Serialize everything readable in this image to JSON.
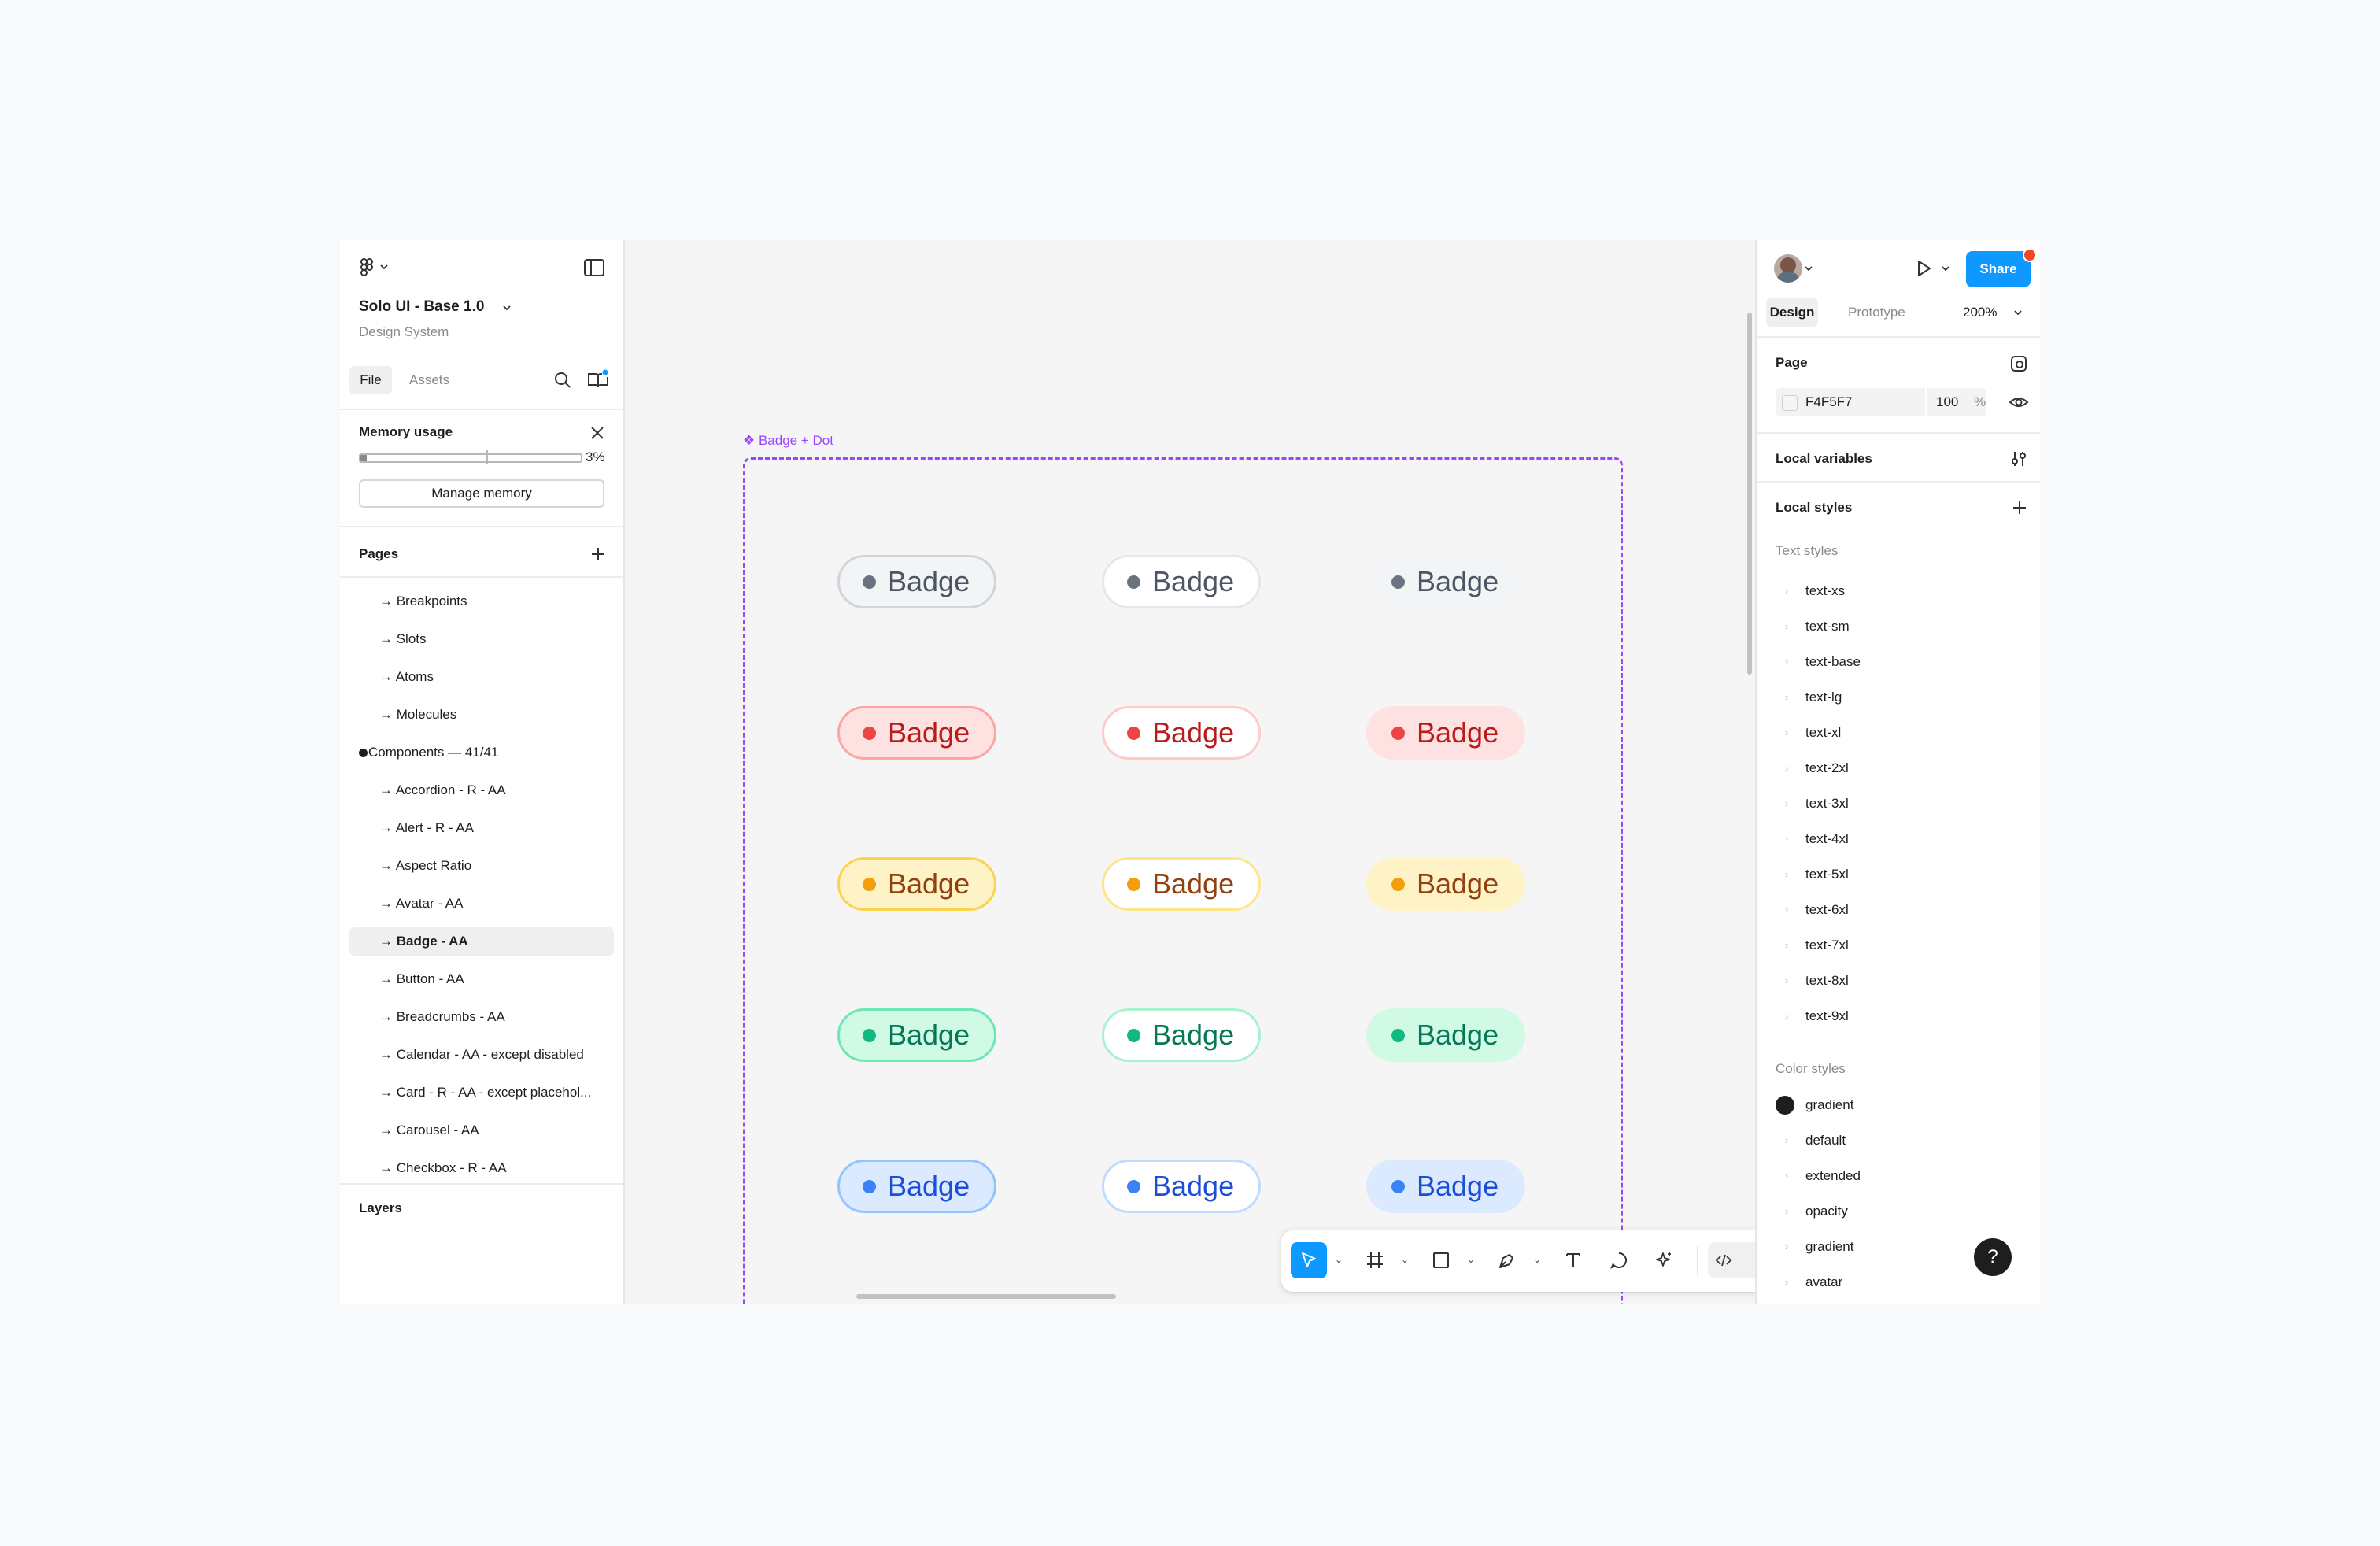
{
  "file": {
    "title": "Solo UI - Base 1.0",
    "subtitle": "Design System",
    "tabs": [
      "File",
      "Assets"
    ]
  },
  "memory": {
    "title": "Memory usage",
    "percent": "3%",
    "fraction": 0.03,
    "button": "Manage memory"
  },
  "pages": {
    "title": "Pages",
    "items": [
      "→ Breakpoints",
      "→ Slots",
      "→ Atoms",
      "→ Molecules",
      "Components — 41/41",
      "→ Accordion - R - AA",
      "→ Alert - R - AA",
      "→ Aspect Ratio",
      "→ Avatar - AA",
      "→ Badge - AA",
      "→ Button - AA",
      "→ Breadcrumbs  - AA",
      "→ Calendar - AA - except disabled",
      "→ Card - R - AA - except placehol...",
      "→ Carousel  - AA",
      "→ Checkbox - R - AA"
    ],
    "selected_index": 9,
    "current_index": 4
  },
  "layers": {
    "title": "Layers"
  },
  "canvas": {
    "frame_label": "❖ Badge + Dot",
    "badge_label": "Badge",
    "rows": [
      {
        "dot": "#6b7280",
        "text": "#4b5563",
        "variants": [
          {
            "bg": "#f3f4f6",
            "border": "#d1d5db"
          },
          {
            "bg": "#ffffff",
            "border": "#e5e7eb"
          },
          {
            "bg": "#f3f4f6",
            "border": "transparent"
          }
        ]
      },
      {
        "dot": "#ef4444",
        "text": "#b91c1c",
        "variants": [
          {
            "bg": "#fee2e2",
            "border": "#fca5a5"
          },
          {
            "bg": "#ffffff",
            "border": "#fecaca"
          },
          {
            "bg": "#fee2e2",
            "border": "transparent"
          }
        ]
      },
      {
        "dot": "#f59e0b",
        "text": "#92400e",
        "variants": [
          {
            "bg": "#fef3c7",
            "border": "#fcd34d"
          },
          {
            "bg": "#ffffff",
            "border": "#fde68a"
          },
          {
            "bg": "#fef3c7",
            "border": "transparent"
          }
        ]
      },
      {
        "dot": "#10b981",
        "text": "#047857",
        "variants": [
          {
            "bg": "#d1fae5",
            "border": "#6ee7b7"
          },
          {
            "bg": "#ffffff",
            "border": "#a7f3d0"
          },
          {
            "bg": "#d1fae5",
            "border": "transparent"
          }
        ]
      },
      {
        "dot": "#3b82f6",
        "text": "#1d4ed8",
        "variants": [
          {
            "bg": "#dbeafe",
            "border": "#93c5fd"
          },
          {
            "bg": "#ffffff",
            "border": "#bfdbfe"
          },
          {
            "bg": "#dbeafe",
            "border": "transparent"
          }
        ]
      }
    ],
    "frame_color": "#9747ff"
  },
  "toolbar": {
    "tools": [
      "move-tool",
      "frame-tool",
      "rectangle-tool",
      "pen-tool",
      "text-tool",
      "comment-tool",
      "actions-tool",
      "dev-mode-toggle"
    ],
    "active": "move-tool",
    "accent": "#0d99ff"
  },
  "right": {
    "share": "Share",
    "tabs": [
      "Design",
      "Prototype"
    ],
    "zoom": "200%",
    "page_section": "Page",
    "page_color": "F4F5F7",
    "page_opacity": "100",
    "percent_sign": "%",
    "local_variables": "Local variables",
    "local_styles": "Local styles",
    "text_styles_title": "Text styles",
    "text_styles": [
      "text-xs",
      "text-sm",
      "text-base",
      "text-lg",
      "text-xl",
      "text-2xl",
      "text-3xl",
      "text-4xl",
      "text-5xl",
      "text-6xl",
      "text-7xl",
      "text-8xl",
      "text-9xl"
    ],
    "color_styles_title": "Color styles",
    "color_styles": [
      "gradient",
      "default",
      "extended",
      "opacity",
      "gradient",
      "avatar"
    ],
    "help": "?"
  }
}
